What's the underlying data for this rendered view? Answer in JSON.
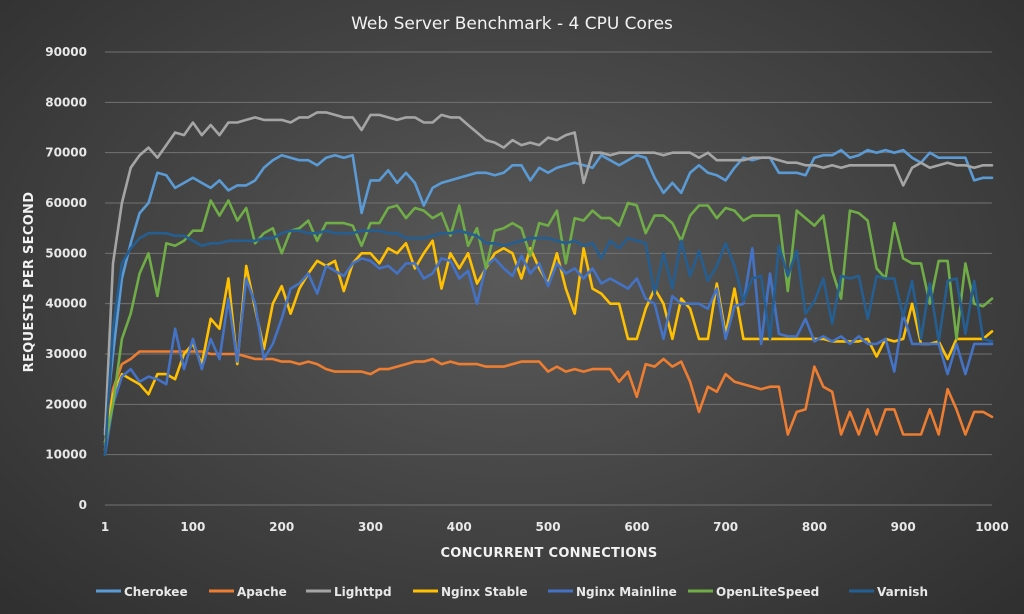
{
  "chart_data": {
    "type": "line",
    "title": "Web Server Benchmark - 4 CPU Cores",
    "xlabel": "CONCURRENT CONNECTIONS",
    "ylabel": "REQUESTS PER SECOND",
    "xlim": [
      1,
      1000
    ],
    "ylim": [
      0,
      90000
    ],
    "x_ticks": [
      "1",
      "100",
      "200",
      "300",
      "400",
      "500",
      "600",
      "700",
      "800",
      "900",
      "1000"
    ],
    "y_ticks": [
      "0",
      "10000",
      "20000",
      "30000",
      "40000",
      "50000",
      "60000",
      "70000",
      "80000",
      "90000"
    ],
    "grid": true,
    "legend_position": "bottom",
    "x": [
      1,
      10,
      20,
      30,
      40,
      50,
      60,
      70,
      80,
      90,
      100,
      110,
      120,
      130,
      140,
      150,
      160,
      170,
      180,
      190,
      200,
      210,
      220,
      230,
      240,
      250,
      260,
      270,
      280,
      290,
      300,
      310,
      320,
      330,
      340,
      350,
      360,
      370,
      380,
      390,
      400,
      410,
      420,
      430,
      440,
      450,
      460,
      470,
      480,
      490,
      500,
      510,
      520,
      530,
      540,
      550,
      560,
      570,
      580,
      590,
      600,
      610,
      620,
      630,
      640,
      650,
      660,
      670,
      680,
      690,
      700,
      710,
      720,
      730,
      740,
      750,
      760,
      770,
      780,
      790,
      800,
      810,
      820,
      830,
      840,
      850,
      860,
      870,
      880,
      890,
      900,
      910,
      920,
      930,
      940,
      950,
      960,
      970,
      980,
      990,
      1000
    ],
    "series": [
      {
        "name": "Cherokee",
        "color": "#5b9bd5",
        "values": [
          15000,
          30000,
          45000,
          52000,
          58000,
          60000,
          66000,
          65500,
          63000,
          64000,
          65000,
          64000,
          63000,
          64500,
          62500,
          63500,
          63500,
          64500,
          67000,
          68500,
          69500,
          69000,
          68500,
          68500,
          67500,
          69000,
          69500,
          69000,
          69500,
          58000,
          64500,
          64500,
          66500,
          64000,
          66000,
          64000,
          59500,
          63000,
          64000,
          64500,
          65000,
          65500,
          66000,
          66000,
          65500,
          66000,
          67500,
          67500,
          64500,
          67000,
          66000,
          67000,
          67500,
          68000,
          67500,
          67000,
          69500,
          68500,
          67500,
          68500,
          69500,
          69000,
          65000,
          62000,
          64000,
          62000,
          66000,
          67500,
          66000,
          65500,
          64500,
          67000,
          69000,
          68500,
          69000,
          69000,
          66000,
          66000,
          66000,
          65500,
          69000,
          69500,
          69500,
          70500,
          69000,
          69500,
          70500,
          70000,
          70500,
          70000,
          70500,
          69000,
          68000,
          70000,
          69000,
          69000,
          69000,
          69000,
          64500,
          65000,
          65000
        ]
      },
      {
        "name": "Apache",
        "color": "#ed7d31",
        "values": [
          11000,
          23000,
          28000,
          29000,
          30500,
          30500,
          30500,
          30500,
          30500,
          30500,
          30500,
          30500,
          30000,
          30000,
          30000,
          30000,
          29500,
          29000,
          29000,
          29000,
          28500,
          28500,
          28000,
          28500,
          28000,
          27000,
          26500,
          26500,
          26500,
          26500,
          26000,
          27000,
          27000,
          27500,
          28000,
          28500,
          28500,
          29000,
          28000,
          28500,
          28000,
          28000,
          28000,
          27500,
          27500,
          27500,
          28000,
          28500,
          28500,
          28500,
          26500,
          27500,
          26500,
          27000,
          26500,
          27000,
          27000,
          27000,
          24500,
          26500,
          21500,
          28000,
          27500,
          29000,
          27500,
          28500,
          24500,
          18500,
          23500,
          22500,
          26000,
          24500,
          24000,
          23500,
          23000,
          23500,
          23500,
          14000,
          18500,
          19000,
          27500,
          23500,
          22500,
          14000,
          18500,
          14000,
          19000,
          14000,
          19000,
          19000,
          14000,
          14000,
          14000,
          19000,
          14000,
          23000,
          19000,
          14000,
          18500,
          18500,
          17500
        ]
      },
      {
        "name": "Lighttpd",
        "color": "#a5a5a5",
        "values": [
          14000,
          48000,
          60000,
          67000,
          69500,
          71000,
          69000,
          71500,
          74000,
          73500,
          76000,
          73500,
          75500,
          73500,
          76000,
          76000,
          76500,
          77000,
          76500,
          76500,
          76500,
          76000,
          77000,
          77000,
          78000,
          78000,
          77500,
          77000,
          77000,
          74500,
          77500,
          77500,
          77000,
          76500,
          77000,
          77000,
          76000,
          76000,
          77500,
          77000,
          77000,
          75500,
          74000,
          72500,
          72000,
          71000,
          72500,
          71500,
          72000,
          71500,
          73000,
          72500,
          73500,
          74000,
          64000,
          70000,
          70000,
          69500,
          70000,
          70000,
          70000,
          70000,
          70000,
          69500,
          70000,
          70000,
          70000,
          69000,
          70000,
          68500,
          68500,
          68500,
          68500,
          69000,
          69000,
          69000,
          68500,
          68000,
          68000,
          67500,
          67500,
          67000,
          67500,
          67000,
          67500,
          67500,
          67500,
          67500,
          67500,
          67500,
          63500,
          67000,
          68000,
          67000,
          67500,
          68000,
          67500,
          67500,
          67000,
          67500,
          67500
        ]
      },
      {
        "name": "Nginx Stable",
        "color": "#ffc000",
        "values": [
          12500,
          22000,
          26000,
          25000,
          24000,
          22000,
          26000,
          26000,
          25000,
          30000,
          32000,
          28000,
          37000,
          35000,
          45000,
          28000,
          47500,
          39000,
          31000,
          40000,
          43500,
          38000,
          43000,
          46000,
          48500,
          47500,
          48500,
          42500,
          48000,
          50000,
          50000,
          48000,
          51000,
          50000,
          52000,
          47000,
          50000,
          52500,
          43000,
          50000,
          47000,
          50000,
          44000,
          47000,
          50000,
          51000,
          50000,
          45000,
          51000,
          47000,
          44000,
          50000,
          43000,
          38000,
          51000,
          43000,
          42000,
          40000,
          40000,
          33000,
          33000,
          39000,
          43000,
          40000,
          33000,
          41000,
          39000,
          33000,
          33000,
          44000,
          34000,
          43000,
          33000,
          33000,
          33000,
          33000,
          33000,
          33000,
          33000,
          33000,
          33000,
          33000,
          32500,
          32500,
          32500,
          32500,
          33000,
          29500,
          33000,
          32500,
          33000,
          40000,
          32000,
          32000,
          32500,
          29000,
          33000,
          33000,
          33000,
          33000,
          34500
        ]
      },
      {
        "name": "Nginx Mainline",
        "color": "#4472c4",
        "values": [
          10000,
          20000,
          25500,
          27000,
          24500,
          25500,
          25000,
          24000,
          35000,
          27000,
          33000,
          27000,
          33000,
          29000,
          41000,
          28500,
          45000,
          40000,
          29000,
          32000,
          37000,
          43000,
          44000,
          46000,
          42000,
          47500,
          46500,
          45500,
          48000,
          49000,
          48500,
          47000,
          47500,
          46000,
          48000,
          48000,
          45000,
          46000,
          49000,
          48500,
          45000,
          46500,
          40000,
          47500,
          49000,
          47000,
          45500,
          49500,
          46000,
          48000,
          43500,
          48000,
          46000,
          47000,
          45000,
          47000,
          44000,
          45000,
          44000,
          43000,
          45000,
          41000,
          40000,
          33000,
          41500,
          40000,
          40000,
          40000,
          39000,
          43000,
          33000,
          39500,
          40000,
          51000,
          32000,
          46000,
          34000,
          33500,
          33500,
          37000,
          32500,
          33500,
          32500,
          33500,
          32000,
          33500,
          32000,
          32000,
          33000,
          26500,
          38000,
          32000,
          32000,
          32000,
          32000,
          26000,
          32000,
          26000,
          32000,
          32000,
          32000
        ]
      },
      {
        "name": "OpenLiteSpeed",
        "color": "#70ad47",
        "values": [
          12000,
          20000,
          33000,
          38000,
          46000,
          50000,
          41500,
          52000,
          51500,
          52500,
          54500,
          54500,
          60500,
          57500,
          60500,
          56500,
          59000,
          52000,
          54000,
          55000,
          50000,
          54500,
          55000,
          56500,
          52500,
          56000,
          56000,
          56000,
          55500,
          51500,
          56000,
          56000,
          59000,
          59500,
          57000,
          59000,
          58500,
          57000,
          58000,
          53500,
          59500,
          51500,
          55000,
          47000,
          54500,
          55000,
          56000,
          55000,
          49500,
          56000,
          55500,
          58500,
          48000,
          57000,
          56500,
          58500,
          57000,
          57000,
          55500,
          60000,
          59500,
          54000,
          57500,
          57500,
          56000,
          52500,
          57500,
          59500,
          59500,
          57000,
          59000,
          58500,
          56500,
          57500,
          57500,
          57500,
          57500,
          42500,
          58500,
          57000,
          55500,
          57500,
          46500,
          41000,
          58500,
          58000,
          56500,
          47000,
          45000,
          56000,
          49000,
          48000,
          48000,
          40000,
          48500,
          48500,
          33000,
          48000,
          40000,
          39500,
          41000
        ]
      },
      {
        "name": "Varnish",
        "color": "#255e91",
        "values": [
          10000,
          35000,
          48000,
          51000,
          53000,
          54000,
          54000,
          54000,
          53500,
          53500,
          52500,
          51500,
          52000,
          52000,
          52500,
          52500,
          52500,
          52500,
          53000,
          53000,
          54000,
          54500,
          54500,
          54000,
          54000,
          54500,
          54000,
          54000,
          54000,
          54500,
          54500,
          54500,
          54000,
          54000,
          53000,
          53000,
          53000,
          53500,
          54000,
          54000,
          54500,
          54000,
          53500,
          52000,
          52000,
          51500,
          52000,
          52500,
          53000,
          53000,
          53000,
          52500,
          52000,
          52500,
          51500,
          52000,
          49000,
          52500,
          51000,
          53000,
          52500,
          52000,
          42000,
          50000,
          43000,
          52500,
          45500,
          50500,
          44500,
          47500,
          52000,
          47500,
          40500,
          45000,
          45500,
          33000,
          51500,
          45500,
          50500,
          38000,
          40500,
          45000,
          36000,
          45500,
          45000,
          45500,
          37000,
          45500,
          45000,
          45000,
          37500,
          44500,
          33000,
          44000,
          32500,
          44500,
          45000,
          34000,
          44500,
          33000,
          32500
        ]
      }
    ]
  }
}
